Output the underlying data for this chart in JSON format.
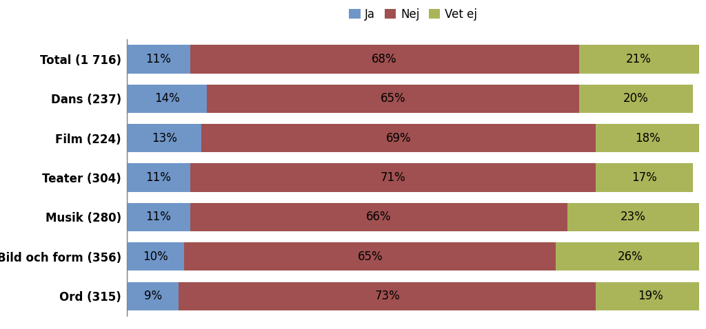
{
  "categories": [
    "Total (1 716)",
    "Dans (237)",
    "Film (224)",
    "Teater (304)",
    "Musik (280)",
    "Bild och form (356)",
    "Ord (315)"
  ],
  "ja": [
    11,
    14,
    13,
    11,
    11,
    10,
    9
  ],
  "nej": [
    68,
    65,
    69,
    71,
    66,
    65,
    73
  ],
  "vet_ej": [
    21,
    20,
    18,
    17,
    23,
    26,
    19
  ],
  "color_ja": "#7096c8",
  "color_nej": "#a05050",
  "color_vet_ej": "#aab55a",
  "legend_labels": [
    "Ja",
    "Nej",
    "Vet ej"
  ],
  "bar_height": 0.72,
  "background_color": "#ffffff",
  "text_color": "#000000",
  "label_fontsize": 12,
  "legend_fontsize": 12,
  "axis_label_fontsize": 12
}
